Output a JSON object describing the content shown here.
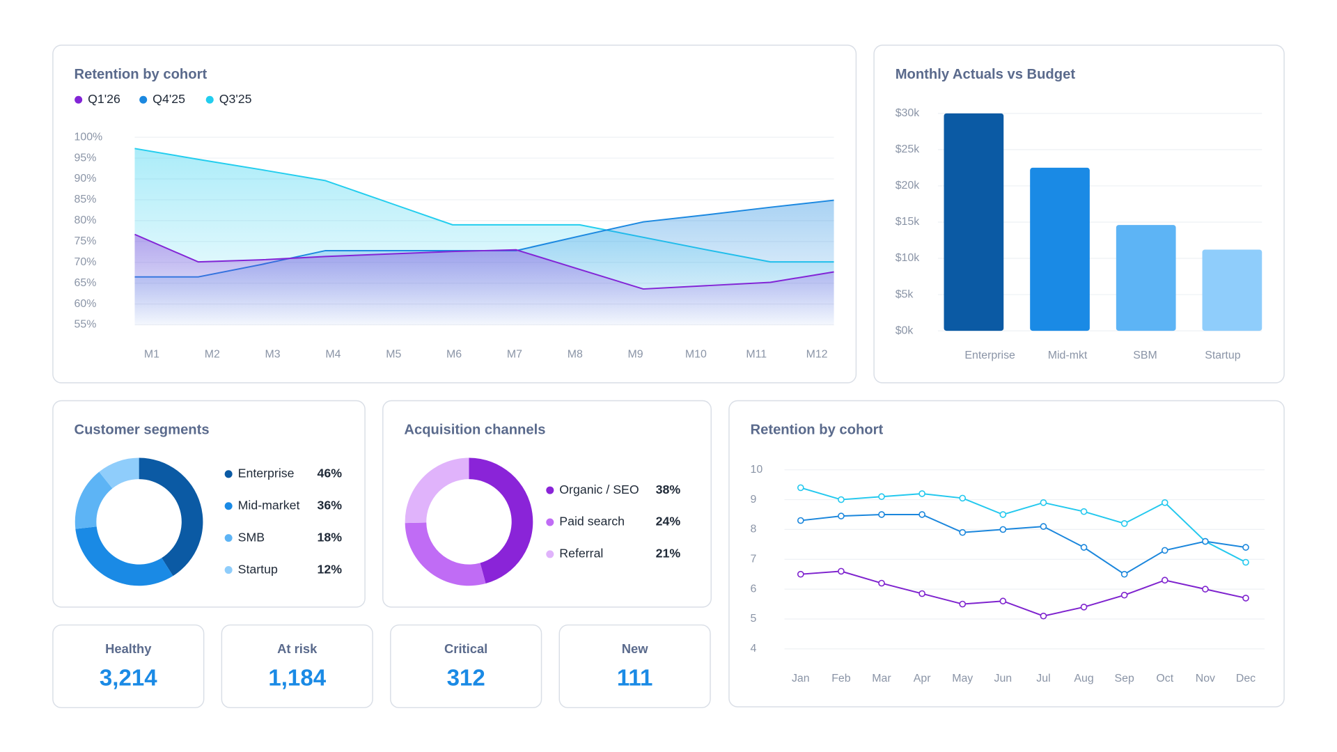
{
  "chart_data": [
    {
      "type": "area",
      "title": "Retention by cohort",
      "categories": [
        "M1",
        "M2",
        "M3",
        "M4",
        "M5",
        "M6",
        "M7",
        "M8",
        "M9",
        "M10",
        "M11",
        "M12"
      ],
      "series": [
        {
          "name": "Q1'26",
          "color": "#8224d6",
          "values": [
            76.7,
            70.1,
            70.6,
            71.4,
            72,
            72.6,
            73,
            68.3,
            63.6,
            64.4,
            65.2,
            67.7
          ]
        },
        {
          "name": "Q4'25",
          "color": "#1b88e0",
          "values": [
            66.5,
            66.5,
            69.5,
            72.8,
            72.8,
            72.8,
            72.8,
            76.3,
            79.7,
            81.4,
            83.2,
            84.9
          ]
        },
        {
          "name": "Q3'25",
          "color": "#22cdee",
          "values": [
            97.3,
            94.7,
            92.2,
            89.6,
            84.3,
            79,
            79,
            79,
            76,
            73,
            70.1,
            70.1
          ]
        }
      ],
      "ylim": [
        55,
        100
      ],
      "yticks": [
        {
          "value": 100,
          "label": "100%"
        },
        {
          "value": 95,
          "label": "95%"
        },
        {
          "value": 90,
          "label": "90%"
        },
        {
          "value": 85,
          "label": "85%"
        },
        {
          "value": 80,
          "label": "80%"
        },
        {
          "value": 75,
          "label": "75%"
        },
        {
          "value": 70,
          "label": "70%"
        },
        {
          "value": 65,
          "label": "65%"
        },
        {
          "value": 60,
          "label": "60%"
        },
        {
          "value": 55,
          "label": "55%"
        }
      ],
      "grid": true
    },
    {
      "type": "bar",
      "title": "Monthly Actuals vs Budget",
      "categories": [
        "Enterprise",
        "Mid-mkt",
        "SBM",
        "Startup"
      ],
      "values": [
        30000,
        22500,
        14600,
        11200
      ],
      "colors": [
        "#0b5aa4",
        "#1a8ae5",
        "#5db4f5",
        "#8fcdfb"
      ],
      "ylim": [
        0,
        30000
      ],
      "yticks": [
        {
          "value": 30000,
          "label": "$30k"
        },
        {
          "value": 25000,
          "label": "$25k"
        },
        {
          "value": 20000,
          "label": "$20k"
        },
        {
          "value": 15000,
          "label": "$15k"
        },
        {
          "value": 10000,
          "label": "$10k"
        },
        {
          "value": 5000,
          "label": "$5k"
        },
        {
          "value": 0,
          "label": "$0k"
        }
      ],
      "grid": true
    },
    {
      "type": "donut",
      "title": "Customer segments",
      "categories": [
        "Enterprise",
        "Mid-market",
        "SMB",
        "Startup"
      ],
      "values": [
        46,
        36,
        18,
        12
      ],
      "value_labels": [
        "46%",
        "36%",
        "18%",
        "12%"
      ],
      "colors": [
        "#0b5aa4",
        "#1a8ae5",
        "#5db4f5",
        "#8fcdfb"
      ]
    },
    {
      "type": "donut",
      "title": "Acquisition channels",
      "categories": [
        "Organic / SEO",
        "Paid search",
        "Referral"
      ],
      "values": [
        38,
        24,
        21
      ],
      "value_labels": [
        "38%",
        "24%",
        "21%"
      ],
      "colors": [
        "#8a24d8",
        "#c06cf5",
        "#e0b3fb"
      ]
    },
    {
      "type": "line",
      "title": "Retention by cohort",
      "categories": [
        "Jan",
        "Feb",
        "Mar",
        "Apr",
        "May",
        "Jun",
        "Jul",
        "Aug",
        "Sep",
        "Oct",
        "Nov",
        "Dec"
      ],
      "series": [
        {
          "color": "#22c8ee",
          "values": [
            9.4,
            9.0,
            9.1,
            9.2,
            9.05,
            8.5,
            8.9,
            8.6,
            8.2,
            8.9,
            7.6,
            6.9
          ]
        },
        {
          "color": "#1a86dc",
          "values": [
            8.3,
            8.45,
            8.5,
            8.5,
            7.9,
            8.0,
            8.1,
            7.4,
            6.5,
            7.3,
            7.6,
            7.4
          ]
        },
        {
          "color": "#7e22ce",
          "values": [
            6.5,
            6.6,
            6.2,
            5.85,
            5.5,
            5.6,
            5.1,
            5.4,
            5.8,
            6.3,
            6.0,
            5.7
          ]
        }
      ],
      "ylim": [
        4,
        10
      ],
      "yticks": [
        4,
        5,
        6,
        7,
        8,
        9,
        10
      ],
      "grid": true
    }
  ],
  "kpis": [
    {
      "label": "Healthy",
      "value": "3,214"
    },
    {
      "label": "At risk",
      "value": "1,184"
    },
    {
      "label": "Critical",
      "value": "312"
    },
    {
      "label": "New",
      "value": "111"
    }
  ]
}
